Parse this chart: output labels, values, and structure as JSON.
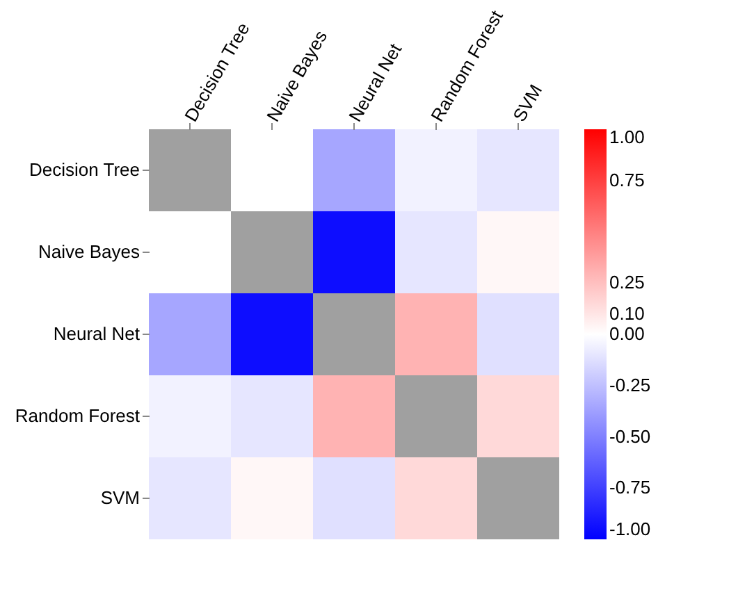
{
  "chart_data": {
    "type": "heatmap",
    "categories": [
      "Decision Tree",
      "Naive Bayes",
      "Neural Net",
      "Random Forest",
      "SVM"
    ],
    "y_categories": [
      "Decision Tree",
      "Naive Bayes",
      "Neural Net",
      "Random Forest",
      "SVM"
    ],
    "cells": [
      [
        null,
        0.0,
        -0.35,
        -0.05,
        -0.1
      ],
      [
        0.0,
        null,
        -0.95,
        -0.1,
        0.03
      ],
      [
        -0.35,
        -0.95,
        null,
        0.3,
        -0.12
      ],
      [
        -0.05,
        -0.1,
        0.3,
        null,
        0.15
      ],
      [
        -0.1,
        0.03,
        -0.12,
        0.15,
        null
      ]
    ],
    "clim": [
      -1,
      1
    ],
    "cticks": [
      {
        "value": 1,
        "label": "1.00"
      },
      {
        "value": 0.75,
        "label": "0.75"
      },
      {
        "value": 0.1,
        "label": "0.10"
      },
      {
        "value": 0.25,
        "label": "0.25"
      },
      {
        "value": 0,
        "label": "0.00"
      },
      {
        "value": -0.25,
        "label": "-0.25"
      },
      {
        "value": -0.5,
        "label": "-0.50"
      },
      {
        "value": -0.75,
        "label": "-0.75"
      },
      {
        "value": -1,
        "label": "-1.00"
      }
    ]
  }
}
